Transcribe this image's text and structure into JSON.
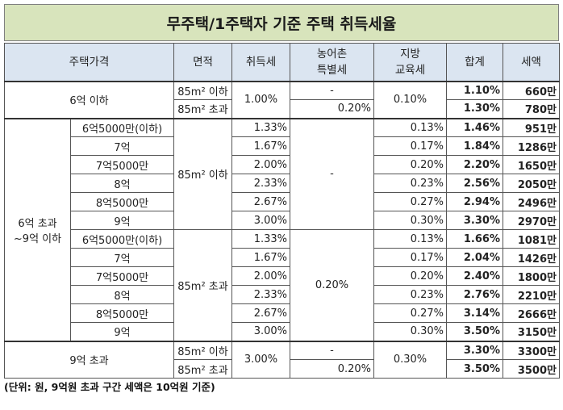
{
  "title": "무주택/1주택자 기준 주택 취득세율",
  "headers": {
    "price": "주택가격",
    "area": "면적",
    "acq_tax": "취득세",
    "rural_tax_l1": "농어촌",
    "rural_tax_l2": "특별세",
    "edu_tax_l1": "지방",
    "edu_tax_l2": "교육세",
    "total": "합계",
    "amount": "세액"
  },
  "section1": {
    "price": "6억 이하",
    "rows": [
      {
        "area": "85m² 이하",
        "acq": "1.00%",
        "rural": "-",
        "edu": "0.10%",
        "total": "1.10%",
        "amount": "660만"
      },
      {
        "area": "85m² 초과",
        "rural": "0.20%",
        "total": "1.30%",
        "amount": "780만"
      }
    ]
  },
  "section2": {
    "price_l1": "6억 초과",
    "price_l2": "~9억 이하",
    "area_small": "85m² 이하",
    "area_large": "85m² 초과",
    "rural_small": "-",
    "rural_large": "0.20%",
    "rows": [
      {
        "sub": "6억5000만(이하)",
        "acq": "1.33%",
        "edu": "0.13%",
        "total": "1.46%",
        "amount": "951만"
      },
      {
        "sub": "7억",
        "acq": "1.67%",
        "edu": "0.17%",
        "total": "1.84%",
        "amount": "1286만"
      },
      {
        "sub": "7억5000만",
        "acq": "2.00%",
        "edu": "0.20%",
        "total": "2.20%",
        "amount": "1650만"
      },
      {
        "sub": "8억",
        "acq": "2.33%",
        "edu": "0.23%",
        "total": "2.56%",
        "amount": "2050만"
      },
      {
        "sub": "8억5000만",
        "acq": "2.67%",
        "edu": "0.27%",
        "total": "2.94%",
        "amount": "2496만"
      },
      {
        "sub": "9억",
        "acq": "3.00%",
        "edu": "0.30%",
        "total": "3.30%",
        "amount": "2970만"
      },
      {
        "sub": "6억5000만(이하)",
        "acq": "1.33%",
        "edu": "0.13%",
        "total": "1.66%",
        "amount": "1081만"
      },
      {
        "sub": "7억",
        "acq": "1.67%",
        "edu": "0.17%",
        "total": "2.04%",
        "amount": "1426만"
      },
      {
        "sub": "7억5000만",
        "acq": "2.00%",
        "edu": "0.20%",
        "total": "2.40%",
        "amount": "1800만"
      },
      {
        "sub": "8억",
        "acq": "2.33%",
        "edu": "0.23%",
        "total": "2.76%",
        "amount": "2210만"
      },
      {
        "sub": "8억5000만",
        "acq": "2.67%",
        "edu": "0.27%",
        "total": "3.14%",
        "amount": "2666만"
      },
      {
        "sub": "9억",
        "acq": "3.00%",
        "edu": "0.30%",
        "total": "3.50%",
        "amount": "3150만"
      }
    ]
  },
  "section3": {
    "price": "9억 초과",
    "rows": [
      {
        "area": "85m² 이하",
        "acq": "3.00%",
        "rural": "-",
        "edu": "0.30%",
        "total": "3.30%",
        "amount": "3300만"
      },
      {
        "area": "85m² 초과",
        "rural": "0.20%",
        "total": "3.50%",
        "amount": "3500만"
      }
    ]
  },
  "footnote": "(단위: 원, 9억원 초과 구간 세액은 10억원 기준)",
  "colors": {
    "title_bg": "#d8e4bc",
    "header_bg": "#dbe5f1",
    "border": "#555555"
  }
}
